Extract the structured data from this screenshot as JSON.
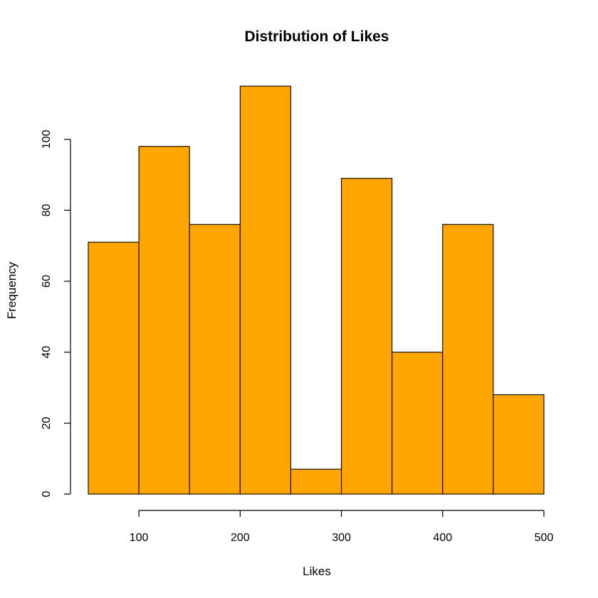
{
  "chart_data": {
    "type": "bar",
    "title": "Distribution of Likes",
    "xlabel": "Likes",
    "ylabel": "Frequency",
    "bar_color": "#FFA500",
    "bins": [
      {
        "start": 50,
        "end": 100,
        "count": 71
      },
      {
        "start": 100,
        "end": 150,
        "count": 98
      },
      {
        "start": 150,
        "end": 200,
        "count": 76
      },
      {
        "start": 200,
        "end": 250,
        "count": 115
      },
      {
        "start": 250,
        "end": 300,
        "count": 7
      },
      {
        "start": 300,
        "end": 350,
        "count": 89
      },
      {
        "start": 350,
        "end": 400,
        "count": 40
      },
      {
        "start": 400,
        "end": 450,
        "count": 76
      },
      {
        "start": 450,
        "end": 500,
        "count": 28
      }
    ],
    "xlim": [
      50,
      500
    ],
    "ylim": [
      0,
      115
    ],
    "x_ticks": [
      100,
      200,
      300,
      400,
      500
    ],
    "y_ticks": [
      0,
      20,
      40,
      60,
      80,
      100
    ],
    "grid": false,
    "legend": "none"
  }
}
